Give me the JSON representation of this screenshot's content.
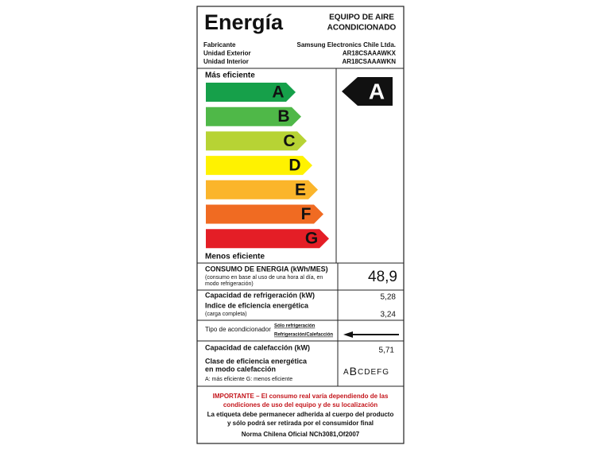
{
  "header": {
    "title": "Energía",
    "product": [
      "EQUIPO DE AIRE",
      "ACONDICIONADO"
    ]
  },
  "info": [
    {
      "label": "Fabricante",
      "value": "Samsung Electronics Chile Ltda."
    },
    {
      "label": "Unidad Exterior",
      "value": "AR18CSAAAWKX"
    },
    {
      "label": "Unidad Interior",
      "value": "AR18CSAAAWKN"
    }
  ],
  "scale": {
    "top_label": "Más eficiente",
    "bottom_label": "Menos eficiente",
    "rating": "A",
    "classes": [
      {
        "letter": "A",
        "color": "#16a04a"
      },
      {
        "letter": "B",
        "color": "#4fb848"
      },
      {
        "letter": "C",
        "color": "#b7d334"
      },
      {
        "letter": "D",
        "color": "#fff200"
      },
      {
        "letter": "E",
        "color": "#fbb52b"
      },
      {
        "letter": "F",
        "color": "#f06b22"
      },
      {
        "letter": "G",
        "color": "#e41e26"
      }
    ]
  },
  "consumption": {
    "label": "CONSUMO DE ENERGIA (kWh/MES)",
    "note": [
      "(consumo en base al uso de una hora al día, en",
      "modo refrigeración)"
    ],
    "value": "48,9"
  },
  "cooling": {
    "capacity_label": "Capacidad de refrigeración (kW)",
    "capacity": "5,28",
    "efficiency_label": "Indice de eficiencia energética",
    "efficiency_note": "(carga completa)",
    "efficiency": "3,24"
  },
  "type": {
    "label": "Tipo de acondicionador",
    "options": [
      "Sólo refrigeración",
      "Refrigeración/Calefacción"
    ],
    "selected": 1
  },
  "heating": {
    "capacity_label": "Capacidad de calefacción (kW)",
    "capacity": "5,71",
    "class_label": [
      "Clase de eficiencia energética",
      "en modo calefacción"
    ],
    "class_note": "A: más eficiente  G: menos eficiente",
    "classes": [
      "A",
      "B",
      "C",
      "D",
      "E",
      "F",
      "G"
    ],
    "selected": 1
  },
  "footer": {
    "important": [
      "IMPORTANTE – El consumo real varía dependiendo de las",
      "condiciones de uso del equipo y de su localización"
    ],
    "notice": [
      "La etiqueta debe permanecer adherida al cuerpo del producto",
      "y sólo podrá ser retirada por el consumidor final"
    ],
    "norm": "Norma Chilena Oficial NCh3081,Of2007"
  }
}
